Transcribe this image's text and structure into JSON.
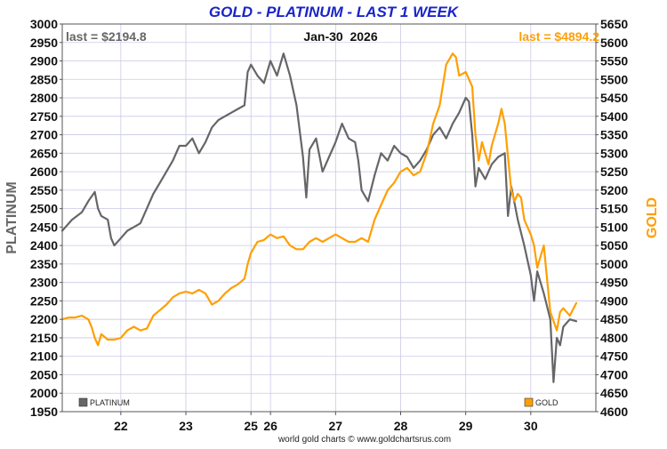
{
  "chart_data": {
    "type": "line",
    "title": "GOLD - PLATINUM - LAST 1 WEEK",
    "date_label": "Jan-30  2026",
    "footer": "world gold charts © www.goldchartsrus.com",
    "left_axis": {
      "label": "PLATINUM",
      "range": [
        1950,
        3000
      ],
      "ticks": [
        1950,
        2000,
        2050,
        2100,
        2150,
        2200,
        2250,
        2300,
        2350,
        2400,
        2450,
        2500,
        2550,
        2600,
        2650,
        2700,
        2750,
        2800,
        2850,
        2900,
        2950,
        3000
      ]
    },
    "right_axis": {
      "label": "GOLD",
      "range": [
        4600,
        5650
      ],
      "ticks": [
        4600,
        4650,
        4700,
        4750,
        4800,
        4850,
        4900,
        4950,
        5000,
        5050,
        5100,
        5150,
        5200,
        5250,
        5300,
        5350,
        5400,
        5450,
        5500,
        5550,
        5600,
        5650
      ]
    },
    "x_axis": {
      "tick_labels": [
        "22",
        "23",
        "25",
        "26",
        "27",
        "28",
        "29",
        "30"
      ],
      "tick_positions": [
        0.9,
        1.9,
        2.9,
        3.2,
        4.2,
        5.2,
        6.2,
        7.2
      ],
      "range": [
        0,
        8.2
      ]
    },
    "series": [
      {
        "name": "PLATINUM",
        "axis": "left",
        "color": "#666666",
        "last_label": "last = $2194.8",
        "points": [
          [
            0.0,
            2440
          ],
          [
            0.15,
            2470
          ],
          [
            0.3,
            2490
          ],
          [
            0.4,
            2520
          ],
          [
            0.5,
            2545
          ],
          [
            0.55,
            2500
          ],
          [
            0.6,
            2480
          ],
          [
            0.7,
            2470
          ],
          [
            0.75,
            2420
          ],
          [
            0.8,
            2400
          ],
          [
            0.9,
            2420
          ],
          [
            1.0,
            2440
          ],
          [
            1.1,
            2450
          ],
          [
            1.2,
            2460
          ],
          [
            1.3,
            2500
          ],
          [
            1.4,
            2540
          ],
          [
            1.5,
            2570
          ],
          [
            1.6,
            2600
          ],
          [
            1.7,
            2630
          ],
          [
            1.8,
            2670
          ],
          [
            1.9,
            2670
          ],
          [
            2.0,
            2690
          ],
          [
            2.1,
            2650
          ],
          [
            2.2,
            2680
          ],
          [
            2.3,
            2720
          ],
          [
            2.4,
            2740
          ],
          [
            2.5,
            2750
          ],
          [
            2.6,
            2760
          ],
          [
            2.7,
            2770
          ],
          [
            2.8,
            2780
          ],
          [
            2.85,
            2870
          ],
          [
            2.9,
            2890
          ],
          [
            3.0,
            2860
          ],
          [
            3.1,
            2840
          ],
          [
            3.2,
            2900
          ],
          [
            3.3,
            2860
          ],
          [
            3.4,
            2920
          ],
          [
            3.5,
            2860
          ],
          [
            3.6,
            2780
          ],
          [
            3.7,
            2640
          ],
          [
            3.75,
            2530
          ],
          [
            3.8,
            2660
          ],
          [
            3.9,
            2690
          ],
          [
            4.0,
            2600
          ],
          [
            4.1,
            2640
          ],
          [
            4.2,
            2680
          ],
          [
            4.3,
            2730
          ],
          [
            4.4,
            2690
          ],
          [
            4.5,
            2680
          ],
          [
            4.55,
            2630
          ],
          [
            4.6,
            2550
          ],
          [
            4.7,
            2520
          ],
          [
            4.8,
            2590
          ],
          [
            4.9,
            2650
          ],
          [
            5.0,
            2630
          ],
          [
            5.1,
            2670
          ],
          [
            5.2,
            2650
          ],
          [
            5.3,
            2640
          ],
          [
            5.4,
            2610
          ],
          [
            5.5,
            2630
          ],
          [
            5.6,
            2660
          ],
          [
            5.7,
            2700
          ],
          [
            5.8,
            2720
          ],
          [
            5.9,
            2690
          ],
          [
            6.0,
            2730
          ],
          [
            6.1,
            2760
          ],
          [
            6.2,
            2800
          ],
          [
            6.25,
            2790
          ],
          [
            6.3,
            2700
          ],
          [
            6.35,
            2560
          ],
          [
            6.4,
            2610
          ],
          [
            6.5,
            2580
          ],
          [
            6.6,
            2620
          ],
          [
            6.7,
            2640
          ],
          [
            6.8,
            2650
          ],
          [
            6.85,
            2480
          ],
          [
            6.9,
            2560
          ],
          [
            7.0,
            2470
          ],
          [
            7.1,
            2400
          ],
          [
            7.2,
            2320
          ],
          [
            7.25,
            2250
          ],
          [
            7.3,
            2330
          ],
          [
            7.4,
            2270
          ],
          [
            7.5,
            2200
          ],
          [
            7.55,
            2030
          ],
          [
            7.6,
            2150
          ],
          [
            7.65,
            2130
          ],
          [
            7.7,
            2180
          ],
          [
            7.8,
            2200
          ],
          [
            7.9,
            2195
          ]
        ]
      },
      {
        "name": "GOLD",
        "axis": "right",
        "color": "#ff9f00",
        "last_label": "last = $4894.2",
        "points": [
          [
            0.0,
            4850
          ],
          [
            0.1,
            4855
          ],
          [
            0.2,
            4855
          ],
          [
            0.3,
            4860
          ],
          [
            0.4,
            4850
          ],
          [
            0.45,
            4830
          ],
          [
            0.5,
            4800
          ],
          [
            0.55,
            4780
          ],
          [
            0.6,
            4810
          ],
          [
            0.7,
            4795
          ],
          [
            0.8,
            4795
          ],
          [
            0.9,
            4800
          ],
          [
            1.0,
            4820
          ],
          [
            1.1,
            4830
          ],
          [
            1.2,
            4820
          ],
          [
            1.3,
            4825
          ],
          [
            1.4,
            4860
          ],
          [
            1.5,
            4875
          ],
          [
            1.6,
            4890
          ],
          [
            1.7,
            4910
          ],
          [
            1.8,
            4920
          ],
          [
            1.9,
            4925
          ],
          [
            2.0,
            4920
          ],
          [
            2.1,
            4930
          ],
          [
            2.2,
            4920
          ],
          [
            2.3,
            4890
          ],
          [
            2.4,
            4900
          ],
          [
            2.5,
            4920
          ],
          [
            2.6,
            4935
          ],
          [
            2.7,
            4945
          ],
          [
            2.8,
            4960
          ],
          [
            2.85,
            5000
          ],
          [
            2.9,
            5030
          ],
          [
            3.0,
            5060
          ],
          [
            3.1,
            5065
          ],
          [
            3.2,
            5080
          ],
          [
            3.3,
            5070
          ],
          [
            3.4,
            5075
          ],
          [
            3.5,
            5050
          ],
          [
            3.6,
            5040
          ],
          [
            3.7,
            5040
          ],
          [
            3.8,
            5060
          ],
          [
            3.9,
            5070
          ],
          [
            4.0,
            5060
          ],
          [
            4.1,
            5070
          ],
          [
            4.2,
            5080
          ],
          [
            4.3,
            5070
          ],
          [
            4.4,
            5060
          ],
          [
            4.5,
            5060
          ],
          [
            4.6,
            5070
          ],
          [
            4.7,
            5060
          ],
          [
            4.8,
            5120
          ],
          [
            4.9,
            5160
          ],
          [
            5.0,
            5200
          ],
          [
            5.1,
            5220
          ],
          [
            5.2,
            5250
          ],
          [
            5.3,
            5260
          ],
          [
            5.4,
            5240
          ],
          [
            5.5,
            5250
          ],
          [
            5.6,
            5300
          ],
          [
            5.7,
            5380
          ],
          [
            5.8,
            5430
          ],
          [
            5.9,
            5540
          ],
          [
            6.0,
            5570
          ],
          [
            6.05,
            5560
          ],
          [
            6.1,
            5510
          ],
          [
            6.2,
            5520
          ],
          [
            6.3,
            5480
          ],
          [
            6.35,
            5350
          ],
          [
            6.4,
            5280
          ],
          [
            6.45,
            5330
          ],
          [
            6.5,
            5300
          ],
          [
            6.55,
            5270
          ],
          [
            6.6,
            5320
          ],
          [
            6.7,
            5380
          ],
          [
            6.75,
            5420
          ],
          [
            6.8,
            5380
          ],
          [
            6.85,
            5290
          ],
          [
            6.9,
            5200
          ],
          [
            6.95,
            5170
          ],
          [
            7.0,
            5190
          ],
          [
            7.05,
            5180
          ],
          [
            7.1,
            5120
          ],
          [
            7.2,
            5080
          ],
          [
            7.25,
            5050
          ],
          [
            7.3,
            4990
          ],
          [
            7.4,
            5050
          ],
          [
            7.45,
            4960
          ],
          [
            7.5,
            4870
          ],
          [
            7.6,
            4820
          ],
          [
            7.65,
            4870
          ],
          [
            7.7,
            4880
          ],
          [
            7.8,
            4860
          ],
          [
            7.9,
            4894
          ]
        ]
      }
    ],
    "legend": [
      {
        "label": "PLATINUM",
        "color": "#666666",
        "position": "bottom-left"
      },
      {
        "label": "GOLD",
        "color": "#ff9f00",
        "position": "bottom-right"
      }
    ],
    "grid": true
  }
}
